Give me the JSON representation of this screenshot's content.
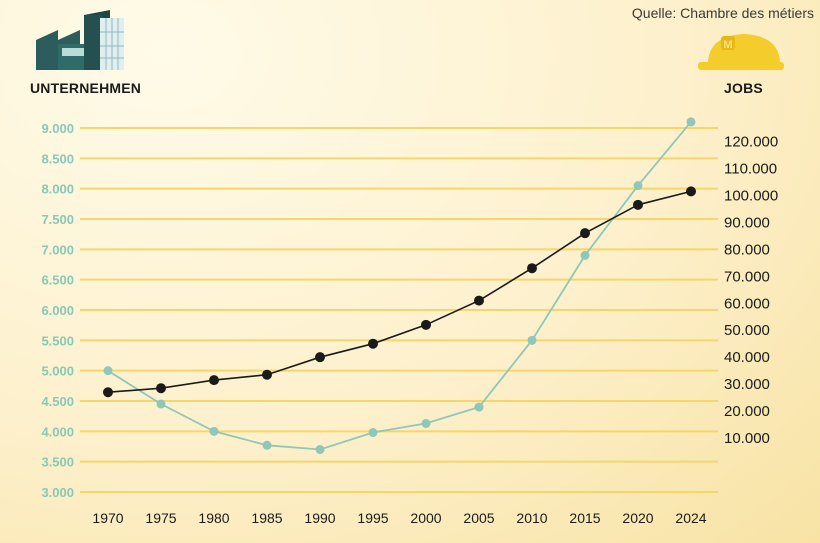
{
  "source": "Quelle: Chambre des métiers",
  "chart_data": {
    "type": "line",
    "categories": [
      "1970",
      "1975",
      "1980",
      "1985",
      "1990",
      "1995",
      "2000",
      "2005",
      "2010",
      "2015",
      "2020",
      "2024"
    ],
    "left_axis": {
      "label": "UNTERNEHMEN",
      "ylim": [
        3000,
        9000
      ],
      "ticks": [
        "3.000",
        "3.500",
        "4.000",
        "4.500",
        "5.000",
        "5.500",
        "6.000",
        "6.500",
        "7.000",
        "7.500",
        "8.000",
        "8.500",
        "9.000"
      ]
    },
    "right_axis": {
      "label": "JOBS",
      "ylim": [
        -10000,
        125000
      ],
      "ticks": [
        "10.000",
        "20.000",
        "30.000",
        "40.000",
        "50.000",
        "60.000",
        "70.000",
        "80.000",
        "90.000",
        "100.000",
        "110.000",
        "120.000"
      ]
    },
    "series": [
      {
        "name": "Unternehmen",
        "axis": "left",
        "color": "#8fc7b9",
        "values": [
          5000,
          4450,
          4000,
          3770,
          3700,
          3980,
          4130,
          4400,
          5500,
          6900,
          8050,
          9100
        ]
      },
      {
        "name": "Jobs",
        "axis": "right",
        "color": "#1a1a1a",
        "values": [
          27000,
          28500,
          31500,
          33500,
          40000,
          45000,
          52000,
          61000,
          73000,
          86000,
          96500,
          101500
        ]
      }
    ],
    "grid": true,
    "grid_color": "#f6d66a"
  }
}
